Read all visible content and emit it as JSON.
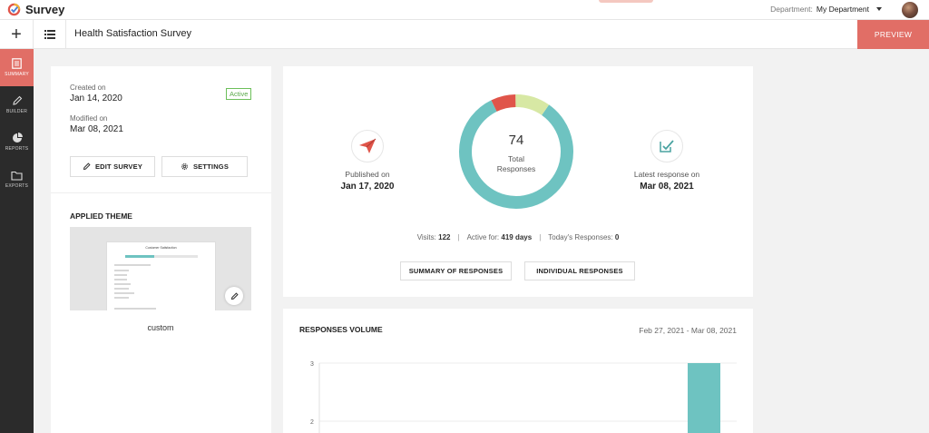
{
  "app": {
    "name": "Survey"
  },
  "header": {
    "department_label": "Department:",
    "department_value": "My Department"
  },
  "toolbar": {
    "survey_title": "Health Satisfaction Survey",
    "preview_label": "PREVIEW"
  },
  "sidebar": {
    "items": [
      {
        "label": "SUMMARY",
        "icon": "document-icon",
        "active": true
      },
      {
        "label": "BUILDER",
        "icon": "pencil-icon",
        "active": false
      },
      {
        "label": "REPORTS",
        "icon": "pie-chart-icon",
        "active": false
      },
      {
        "label": "EXPORTS",
        "icon": "folder-icon",
        "active": false
      }
    ]
  },
  "info": {
    "created_label": "Created on",
    "created_value": "Jan 14, 2020",
    "modified_label": "Modified on",
    "modified_value": "Mar 08, 2021",
    "status": "Active",
    "edit_label": "EDIT SURVEY",
    "settings_label": "SETTINGS"
  },
  "theme": {
    "heading": "APPLIED THEME",
    "name": "custom",
    "preview_title": "Customer Satisfaction",
    "preview_progress": 0.4
  },
  "summary": {
    "published_label": "Published on",
    "published_value": "Jan 17, 2020",
    "latest_label": "Latest response on",
    "latest_value": "Mar 08, 2021",
    "total": "74",
    "total_label_1": "Total",
    "total_label_2": "Responses",
    "visits_label": "Visits:",
    "visits_value": "122",
    "active_label": "Active for:",
    "active_value": "419 days",
    "today_label": "Today's Responses:",
    "today_value": "0",
    "summary_btn": "SUMMARY OF RESPONSES",
    "individual_btn": "INDIVIDUAL RESPONSES",
    "donut_segments": [
      {
        "color": "#6ec3c1",
        "fraction": 0.83
      },
      {
        "color": "#e0554a",
        "fraction": 0.07
      },
      {
        "color": "#d7e8a4",
        "fraction": 0.1
      }
    ]
  },
  "volume": {
    "title": "RESPONSES VOLUME",
    "range": "Feb 27, 2021 - Mar 08, 2021"
  },
  "chart_data": {
    "type": "bar",
    "title": "RESPONSES VOLUME",
    "x_range": [
      "Feb 27, 2021",
      "Mar 08, 2021"
    ],
    "yticks": [
      2,
      3
    ],
    "ylim": [
      0,
      3
    ],
    "series": [
      {
        "values_last_day": 3
      }
    ],
    "bar_color": "#6ec3c1"
  },
  "colors": {
    "accent": "#e16e66",
    "teal": "#6ec3c1",
    "active_green": "#5aa84a"
  }
}
